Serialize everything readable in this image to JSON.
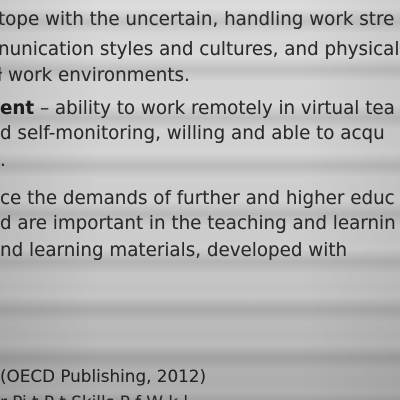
{
  "document": {
    "lines": [
      {
        "text": "tope with the uncertain, handling work stre"
      },
      {
        "text": "nunication styles and cultures, and physical"
      },
      {
        "text": "ł work environments."
      },
      {
        "bold": "ent",
        "text": " – ability to work remotely in virtual tea"
      },
      {
        "text": "d self-monitoring, willing and able to acqu"
      },
      {
        "text": "."
      },
      {
        "text": "ce the demands of further and higher educ"
      },
      {
        "text": "d are important in the teaching and learnin"
      },
      {
        "text": "nd learning materials, developed with"
      }
    ],
    "reference": "(OECD Publishing, 2012)",
    "cut_line": "r Pi t P t  Skills P    f W  k l"
  }
}
